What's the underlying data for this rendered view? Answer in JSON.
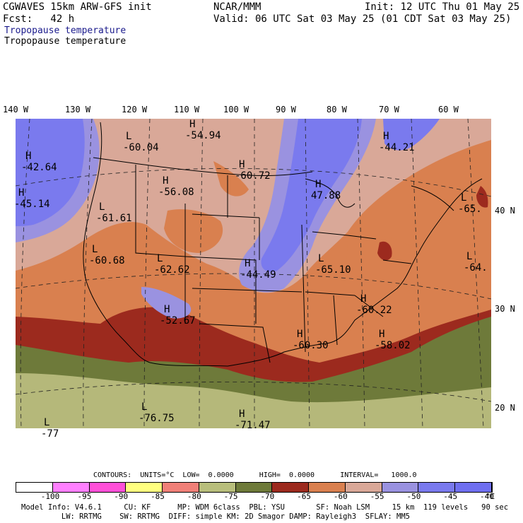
{
  "header": {
    "line1_left": "CGWAVES 15km ARW-GFS init",
    "line2_left": "Fcst:   42 h",
    "center": "NCAR/MMM",
    "init": "Init: 12 UTC Thu 01 May 25",
    "valid": "Valid: 06 UTC Sat 03 May 25 (01 CDT Sat 03 May 25)",
    "field_title_1": "Tropopause temperature",
    "field_title_2": "Tropopause temperature"
  },
  "colors": {
    "title_blue": "#1a1a8c",
    "ocean_olive": "#6e7a3a",
    "deep_red": "#9c2a1e",
    "orange": "#d9804f",
    "salmon": "#d9a898",
    "lavender": "#9a92e0",
    "blue": "#7a7aee",
    "light_olive": "#b5b87a"
  },
  "lon_labels": [
    "140 W",
    "130 W",
    "120 W",
    "110 W",
    "100 W",
    "90 W",
    "80 W",
    "70 W",
    "60 W"
  ],
  "lat_labels": [
    "40 N",
    "30 N",
    "20 N"
  ],
  "map_labels": [
    {
      "type": "L",
      "value": "-60.04"
    },
    {
      "type": "H",
      "value": "-54.94"
    },
    {
      "type": "H",
      "value": "-42.64"
    },
    {
      "type": "H",
      "value": "-45.14"
    },
    {
      "type": "L",
      "value": "-61.61"
    },
    {
      "type": "H",
      "value": "-56.08"
    },
    {
      "type": "H",
      "value": "-60.72"
    },
    {
      "type": "H",
      "value": "47.88"
    },
    {
      "type": "H",
      "value": "-44.21"
    },
    {
      "type": "L",
      "value": "-65."
    },
    {
      "type": "L",
      "value": "-60.68"
    },
    {
      "type": "L",
      "value": "-62.62"
    },
    {
      "type": "H",
      "value": "-44.49"
    },
    {
      "type": "L",
      "value": "-65.10"
    },
    {
      "type": "L",
      "value": "-64."
    },
    {
      "type": "H",
      "value": "-52.67"
    },
    {
      "type": "H",
      "value": "-60.22"
    },
    {
      "type": "H",
      "value": "-60.30"
    },
    {
      "type": "H",
      "value": "-58.02"
    },
    {
      "type": "L",
      "value": "-76.75"
    },
    {
      "type": "L",
      "value": "-77"
    },
    {
      "type": "H",
      "value": "-71.47"
    }
  ],
  "contours_line": "CONTOURS:  UNITS=°C  LOW=  0.0000      HIGH=  0.0000      INTERVAL=   1000.0",
  "colorbar": {
    "colors": [
      "#ffffff",
      "#ff80ff",
      "#ff50d8",
      "#ffff80",
      "#f08078",
      "#b8be7c",
      "#6e7a3a",
      "#9c2a1e",
      "#d9804f",
      "#d9a898",
      "#9a92e0",
      "#7a7aee",
      "#6f6ff0"
    ],
    "labels": [
      "-100",
      "-95",
      "-90",
      "-85",
      "-80",
      "-75",
      "-70",
      "-65",
      "-60",
      "-55",
      "-50",
      "-45",
      "-40"
    ],
    "unit": "°C"
  },
  "footer": {
    "line1": "Model Info: V4.6.1     CU: KF      MP: WDM 6class  PBL: YSU       SF: Noah LSM     15 km  119 levels   90 sec",
    "line2": "         LW: RRTMG    SW: RRTMG  DIFF: simple KM: 2D Smagor DAMP: Rayleigh3  SFLAY: MM5"
  }
}
